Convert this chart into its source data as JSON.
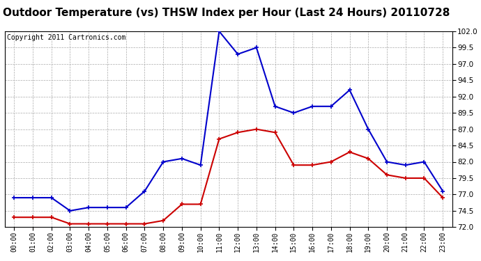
{
  "title": "Outdoor Temperature (vs) THSW Index per Hour (Last 24 Hours) 20110728",
  "copyright": "Copyright 2011 Cartronics.com",
  "hours": [
    "00:00",
    "01:00",
    "02:00",
    "03:00",
    "04:00",
    "05:00",
    "06:00",
    "07:00",
    "08:00",
    "09:00",
    "10:00",
    "11:00",
    "12:00",
    "13:00",
    "14:00",
    "15:00",
    "16:00",
    "17:00",
    "18:00",
    "19:00",
    "20:00",
    "21:00",
    "22:00",
    "23:00"
  ],
  "thsw_index": [
    76.5,
    76.5,
    76.5,
    74.5,
    75.0,
    75.0,
    75.0,
    77.5,
    82.0,
    82.5,
    81.5,
    102.0,
    98.5,
    99.5,
    90.5,
    89.5,
    90.5,
    90.5,
    93.0,
    87.0,
    82.0,
    81.5,
    82.0,
    77.5
  ],
  "outdoor_temp": [
    73.5,
    73.5,
    73.5,
    72.5,
    72.5,
    72.5,
    72.5,
    72.5,
    73.0,
    75.5,
    75.5,
    85.5,
    86.5,
    87.0,
    86.5,
    81.5,
    81.5,
    82.0,
    83.5,
    82.5,
    80.0,
    79.5,
    79.5,
    76.5
  ],
  "thsw_color": "#0000cc",
  "temp_color": "#cc0000",
  "bg_color": "#ffffff",
  "grid_color": "#aaaaaa",
  "ylim_min": 72.0,
  "ylim_max": 102.0,
  "yticks": [
    72.0,
    74.5,
    77.0,
    79.5,
    82.0,
    84.5,
    87.0,
    89.5,
    92.0,
    94.5,
    97.0,
    99.5,
    102.0
  ],
  "title_fontsize": 11,
  "copyright_fontsize": 7,
  "tick_fontsize": 7,
  "ytick_fontsize": 7.5,
  "marker": "+",
  "linewidth": 1.5,
  "markersize": 5,
  "markeredgewidth": 1.2
}
